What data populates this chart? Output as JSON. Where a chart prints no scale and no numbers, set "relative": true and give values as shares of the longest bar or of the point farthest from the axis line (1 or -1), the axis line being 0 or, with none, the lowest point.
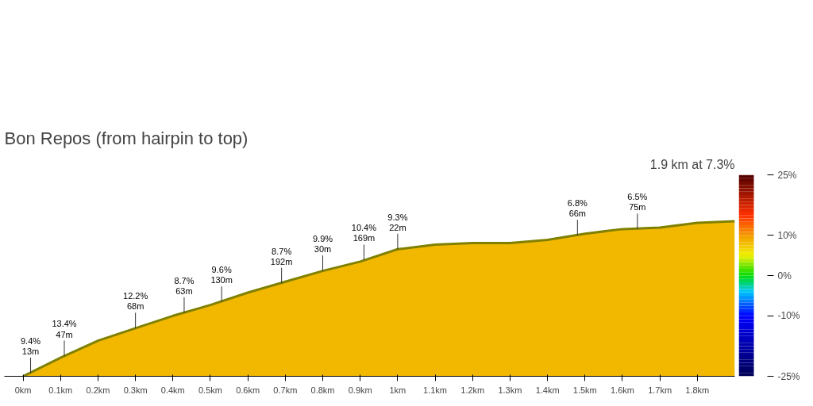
{
  "chart_data": {
    "type": "area",
    "title": "Bon Repos (from hairpin to top)",
    "subtitle": "1.9 km at 7.3%",
    "relative": true,
    "x": [
      0,
      0.1,
      0.2,
      0.3,
      0.4,
      0.5,
      0.6,
      0.7,
      0.8,
      0.9,
      1.0,
      1.1,
      1.2,
      1.3,
      1.4,
      1.5,
      1.6,
      1.7,
      1.8,
      1.9
    ],
    "values": [
      0,
      0.12,
      0.23,
      0.31,
      0.39,
      0.46,
      0.54,
      0.61,
      0.68,
      0.74,
      0.82,
      0.85,
      0.86,
      0.86,
      0.88,
      0.92,
      0.95,
      0.96,
      0.99,
      1.0
    ],
    "color": "#f2b800",
    "xlim": [
      -0.05,
      1.9
    ],
    "xticks": [
      {
        "value": 0,
        "label": "0km"
      },
      {
        "value": 0.1,
        "label": "0.1km"
      },
      {
        "value": 0.2,
        "label": "0.2km"
      },
      {
        "value": 0.3,
        "label": "0.3km"
      },
      {
        "value": 0.4,
        "label": "0.4km"
      },
      {
        "value": 0.5,
        "label": "0.5km"
      },
      {
        "value": 0.6,
        "label": "0.6km"
      },
      {
        "value": 0.7,
        "label": "0.7km"
      },
      {
        "value": 0.8,
        "label": "0.8km"
      },
      {
        "value": 0.9,
        "label": "0.9km"
      },
      {
        "value": 1.0,
        "label": "1km"
      },
      {
        "value": 1.1,
        "label": "1.1km"
      },
      {
        "value": 1.2,
        "label": "1.2km"
      },
      {
        "value": 1.3,
        "label": "1.3km"
      },
      {
        "value": 1.4,
        "label": "1.4km"
      },
      {
        "value": 1.5,
        "label": "1.5km"
      },
      {
        "value": 1.6,
        "label": "1.6km"
      },
      {
        "value": 1.7,
        "label": "1.7km"
      },
      {
        "value": 1.8,
        "label": "1.8km"
      }
    ],
    "clim": [
      -25,
      25
    ],
    "cticks": [
      {
        "value": 25,
        "label": "25%"
      },
      {
        "value": 10,
        "label": "10%"
      },
      {
        "value": 0,
        "label": "0%"
      },
      {
        "value": -10,
        "label": "-10%"
      },
      {
        "value": -25,
        "label": "-25%"
      }
    ],
    "grid": false,
    "annotations": [
      {
        "text": "9.4%\n13m",
        "x": 0.02,
        "y": 0.02
      },
      {
        "text": "13.4%\n47m",
        "x": 0.11,
        "y": 0.13
      },
      {
        "text": "12.2%\n68m",
        "x": 0.3,
        "y": 0.31
      },
      {
        "text": "8.7%\n63m",
        "x": 0.43,
        "y": 0.41
      },
      {
        "text": "9.6%\n130m",
        "x": 0.53,
        "y": 0.48
      },
      {
        "text": "8.7%\n192m",
        "x": 0.69,
        "y": 0.6
      },
      {
        "text": "9.9%\n30m",
        "x": 0.8,
        "y": 0.68
      },
      {
        "text": "10.4%\n169m",
        "x": 0.91,
        "y": 0.75
      },
      {
        "text": "9.3%\n22m",
        "x": 1.0,
        "y": 0.82
      },
      {
        "text": "6.8%\n66m",
        "x": 1.48,
        "y": 0.91
      },
      {
        "text": "6.5%\n75m",
        "x": 1.64,
        "y": 0.95
      }
    ]
  }
}
